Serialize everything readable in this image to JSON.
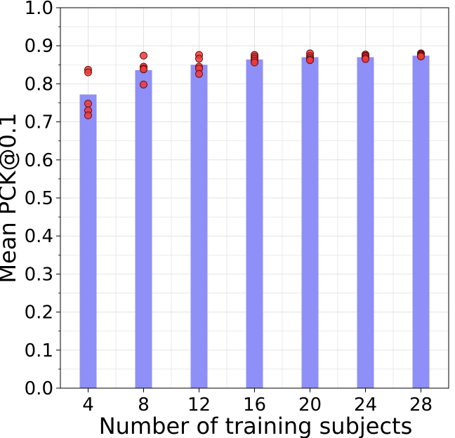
{
  "chart_data": {
    "type": "bar",
    "xlabel": "Number of training subjects",
    "ylabel": "Mean PCK@0.1",
    "categories": [
      "4",
      "8",
      "12",
      "16",
      "20",
      "24",
      "28"
    ],
    "values": [
      0.772,
      0.836,
      0.85,
      0.864,
      0.87,
      0.87,
      0.874
    ],
    "points": [
      [
        0.837,
        0.83,
        0.748,
        0.73,
        0.717
      ],
      [
        0.874,
        0.845,
        0.84,
        0.838,
        0.798
      ],
      [
        0.876,
        0.866,
        0.845,
        0.84,
        0.826
      ],
      [
        0.876,
        0.871,
        0.866,
        0.861,
        0.856
      ],
      [
        0.88,
        0.873,
        0.868,
        0.864,
        0.862
      ],
      [
        0.877,
        0.874,
        0.872,
        0.868,
        0.865
      ],
      [
        0.88,
        0.878,
        0.876,
        0.874,
        0.872
      ]
    ],
    "ylim": [
      0.0,
      1.0
    ],
    "yticks": [
      "0.0",
      "0.1",
      "0.2",
      "0.3",
      "0.4",
      "0.5",
      "0.6",
      "0.7",
      "0.8",
      "0.9",
      "1.0"
    ],
    "grid": true,
    "colors": {
      "bar": "#8f8ff8",
      "point_fill": "#ee3a3a",
      "point_stroke": "#6a1010",
      "grid": "#e2e2e2"
    }
  }
}
